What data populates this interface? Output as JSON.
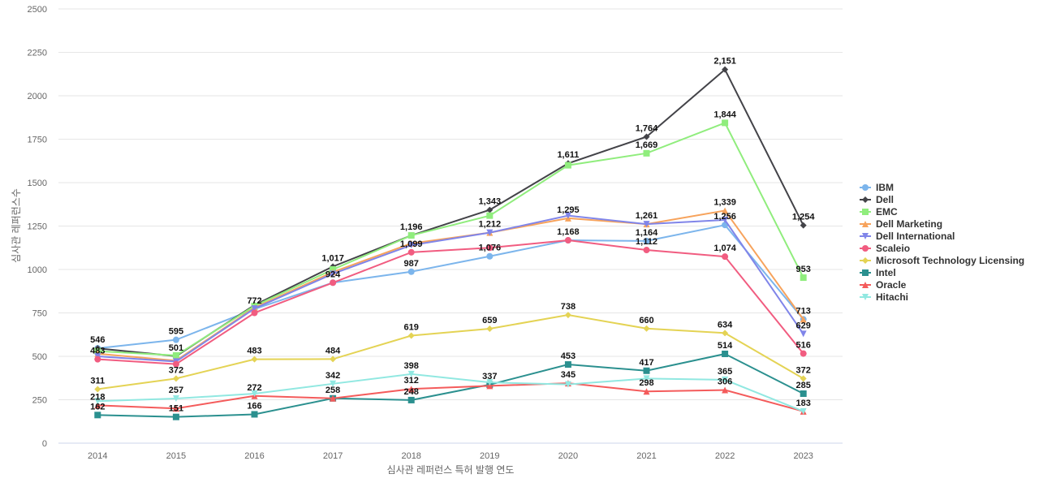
{
  "chart_data": {
    "type": "line",
    "title": "",
    "xlabel": "심사관 레퍼런스 특허 발행 연도",
    "ylabel": "심사관 레퍼런스수",
    "x": [
      "2014",
      "2015",
      "2016",
      "2017",
      "2018",
      "2019",
      "2020",
      "2021",
      "2022",
      "2023"
    ],
    "ylim": [
      0,
      2500
    ],
    "yticks": [
      "0",
      "250",
      "500",
      "750",
      "1000",
      "1250",
      "1500",
      "1750",
      "2000",
      "2250",
      "2500"
    ],
    "grid": true,
    "legend_position": "right",
    "series": [
      {
        "name": "IBM",
        "color": "#7cb5ec",
        "marker": "circle",
        "values": [
          546,
          595,
          772,
          924,
          987,
          1076,
          1168,
          1164,
          1256,
          713
        ]
      },
      {
        "name": "Dell",
        "color": "#434348",
        "marker": "diamond",
        "values": [
          546,
          501,
          795,
          1017,
          1196,
          1343,
          1611,
          1764,
          2151,
          1254
        ]
      },
      {
        "name": "EMC",
        "color": "#90ed7d",
        "marker": "square",
        "values": [
          530,
          505,
          790,
          1000,
          1196,
          1310,
          1600,
          1669,
          1844,
          953
        ]
      },
      {
        "name": "Dell Marketing",
        "color": "#f7a35c",
        "marker": "triangle",
        "values": [
          515,
          475,
          780,
          985,
          1150,
          1212,
          1295,
          1261,
          1339,
          713
        ]
      },
      {
        "name": "Dell International",
        "color": "#8085e9",
        "marker": "triangle-down",
        "values": [
          500,
          470,
          775,
          975,
          1140,
          1212,
          1310,
          1261,
          1285,
          629
        ]
      },
      {
        "name": "Scaleio",
        "color": "#f15c80",
        "marker": "circle",
        "values": [
          483,
          455,
          750,
          924,
          1099,
          1125,
          1168,
          1112,
          1074,
          516
        ]
      },
      {
        "name": "Microsoft Technology Licensing",
        "color": "#e4d354",
        "marker": "diamond",
        "values": [
          311,
          372,
          483,
          484,
          619,
          659,
          738,
          660,
          634,
          372
        ]
      },
      {
        "name": "Intel",
        "color": "#2b908f",
        "marker": "square",
        "values": [
          162,
          151,
          166,
          258,
          248,
          337,
          453,
          417,
          514,
          285
        ]
      },
      {
        "name": "Oracle",
        "color": "#f45b5b",
        "marker": "triangle",
        "values": [
          218,
          200,
          272,
          258,
          312,
          330,
          345,
          298,
          306,
          183
        ]
      },
      {
        "name": "Hitachi",
        "color": "#91e8e1",
        "marker": "triangle-down",
        "values": [
          242,
          257,
          285,
          342,
          398,
          350,
          338,
          372,
          365,
          183
        ]
      }
    ],
    "data_labels": [
      {
        "x": "2014",
        "y": 546,
        "text": "546"
      },
      {
        "x": "2014",
        "y": 483,
        "text": "483"
      },
      {
        "x": "2014",
        "y": 311,
        "text": "311"
      },
      {
        "x": "2014",
        "y": 218,
        "text": "218"
      },
      {
        "x": "2014",
        "y": 162,
        "text": "162"
      },
      {
        "x": "2015",
        "y": 595,
        "text": "595"
      },
      {
        "x": "2015",
        "y": 501,
        "text": "501"
      },
      {
        "x": "2015",
        "y": 372,
        "text": "372"
      },
      {
        "x": "2015",
        "y": 257,
        "text": "257"
      },
      {
        "x": "2015",
        "y": 151,
        "text": "151"
      },
      {
        "x": "2016",
        "y": 772,
        "text": "772"
      },
      {
        "x": "2016",
        "y": 483,
        "text": "483"
      },
      {
        "x": "2016",
        "y": 272,
        "text": "272"
      },
      {
        "x": "2016",
        "y": 166,
        "text": "166"
      },
      {
        "x": "2017",
        "y": 1017,
        "text": "1,017"
      },
      {
        "x": "2017",
        "y": 924,
        "text": "924"
      },
      {
        "x": "2017",
        "y": 484,
        "text": "484"
      },
      {
        "x": "2017",
        "y": 342,
        "text": "342"
      },
      {
        "x": "2017",
        "y": 258,
        "text": "258"
      },
      {
        "x": "2018",
        "y": 1196,
        "text": "1,196"
      },
      {
        "x": "2018",
        "y": 1099,
        "text": "1,099"
      },
      {
        "x": "2018",
        "y": 987,
        "text": "987"
      },
      {
        "x": "2018",
        "y": 619,
        "text": "619"
      },
      {
        "x": "2018",
        "y": 398,
        "text": "398"
      },
      {
        "x": "2018",
        "y": 312,
        "text": "312"
      },
      {
        "x": "2018",
        "y": 248,
        "text": "248"
      },
      {
        "x": "2019",
        "y": 1343,
        "text": "1,343"
      },
      {
        "x": "2019",
        "y": 1212,
        "text": "1,212"
      },
      {
        "x": "2019",
        "y": 1076,
        "text": "1,076"
      },
      {
        "x": "2019",
        "y": 659,
        "text": "659"
      },
      {
        "x": "2019",
        "y": 337,
        "text": "337"
      },
      {
        "x": "2020",
        "y": 1611,
        "text": "1,611"
      },
      {
        "x": "2020",
        "y": 1295,
        "text": "1,295"
      },
      {
        "x": "2020",
        "y": 1168,
        "text": "1,168"
      },
      {
        "x": "2020",
        "y": 738,
        "text": "738"
      },
      {
        "x": "2020",
        "y": 453,
        "text": "453"
      },
      {
        "x": "2020",
        "y": 345,
        "text": "345"
      },
      {
        "x": "2021",
        "y": 1764,
        "text": "1,764"
      },
      {
        "x": "2021",
        "y": 1669,
        "text": "1,669"
      },
      {
        "x": "2021",
        "y": 1261,
        "text": "1,261"
      },
      {
        "x": "2021",
        "y": 1164,
        "text": "1,164"
      },
      {
        "x": "2021",
        "y": 1112,
        "text": "1,112"
      },
      {
        "x": "2021",
        "y": 660,
        "text": "660"
      },
      {
        "x": "2021",
        "y": 417,
        "text": "417"
      },
      {
        "x": "2021",
        "y": 298,
        "text": "298"
      },
      {
        "x": "2022",
        "y": 2151,
        "text": "2,151"
      },
      {
        "x": "2022",
        "y": 1844,
        "text": "1,844"
      },
      {
        "x": "2022",
        "y": 1339,
        "text": "1,339"
      },
      {
        "x": "2022",
        "y": 1256,
        "text": "1,256"
      },
      {
        "x": "2022",
        "y": 1074,
        "text": "1,074"
      },
      {
        "x": "2022",
        "y": 634,
        "text": "634"
      },
      {
        "x": "2022",
        "y": 514,
        "text": "514"
      },
      {
        "x": "2022",
        "y": 365,
        "text": "365"
      },
      {
        "x": "2022",
        "y": 306,
        "text": "306"
      },
      {
        "x": "2023",
        "y": 1254,
        "text": "1,254"
      },
      {
        "x": "2023",
        "y": 953,
        "text": "953"
      },
      {
        "x": "2023",
        "y": 713,
        "text": "713"
      },
      {
        "x": "2023",
        "y": 629,
        "text": "629"
      },
      {
        "x": "2023",
        "y": 516,
        "text": "516"
      },
      {
        "x": "2023",
        "y": 372,
        "text": "372"
      },
      {
        "x": "2023",
        "y": 285,
        "text": "285"
      },
      {
        "x": "2023",
        "y": 183,
        "text": "183"
      }
    ]
  }
}
